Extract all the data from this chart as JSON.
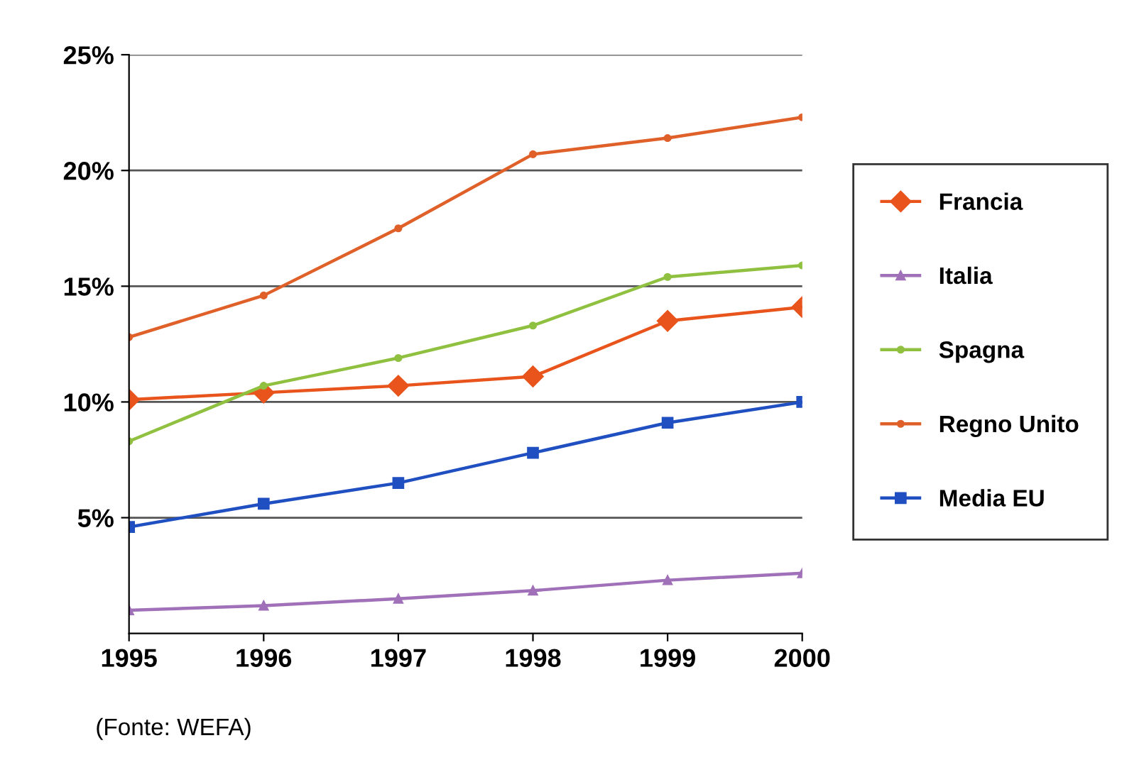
{
  "chart_data": {
    "type": "line",
    "x": [
      1995,
      1996,
      1997,
      1998,
      1999,
      2000
    ],
    "xlim": [
      1995,
      2000
    ],
    "xticks": [
      1995,
      1996,
      1997,
      1998,
      1999,
      2000
    ],
    "ylim": [
      0,
      25
    ],
    "yticks": [
      {
        "value": 5,
        "label": "5%"
      },
      {
        "value": 10,
        "label": "10%"
      },
      {
        "value": 15,
        "label": "15%"
      },
      {
        "value": 20,
        "label": "20%"
      },
      {
        "value": 25,
        "label": "25%"
      }
    ],
    "grid": "y",
    "legend": "right",
    "series": [
      {
        "name": "Francia",
        "color": "#e8541c",
        "marker": "diamond",
        "values": [
          10.1,
          10.4,
          10.7,
          11.1,
          13.5,
          14.1
        ]
      },
      {
        "name": "Italia",
        "color": "#a070b8",
        "marker": "triangle",
        "values": [
          1.0,
          1.2,
          1.5,
          1.85,
          2.3,
          2.6
        ]
      },
      {
        "name": "Spagna",
        "color": "#90c040",
        "marker": "circle",
        "values": [
          8.3,
          10.7,
          11.9,
          13.3,
          15.4,
          15.9
        ]
      },
      {
        "name": "Regno Unito",
        "color": "#e0602a",
        "marker": "circle",
        "values": [
          12.8,
          14.6,
          17.5,
          20.7,
          21.4,
          22.3
        ]
      },
      {
        "name": "Media EU",
        "color": "#1f4fc0",
        "marker": "square",
        "values": [
          4.6,
          5.6,
          6.5,
          7.8,
          9.1,
          10.0
        ]
      }
    ],
    "annotations": [
      "(Fonte: WEFA)"
    ]
  }
}
